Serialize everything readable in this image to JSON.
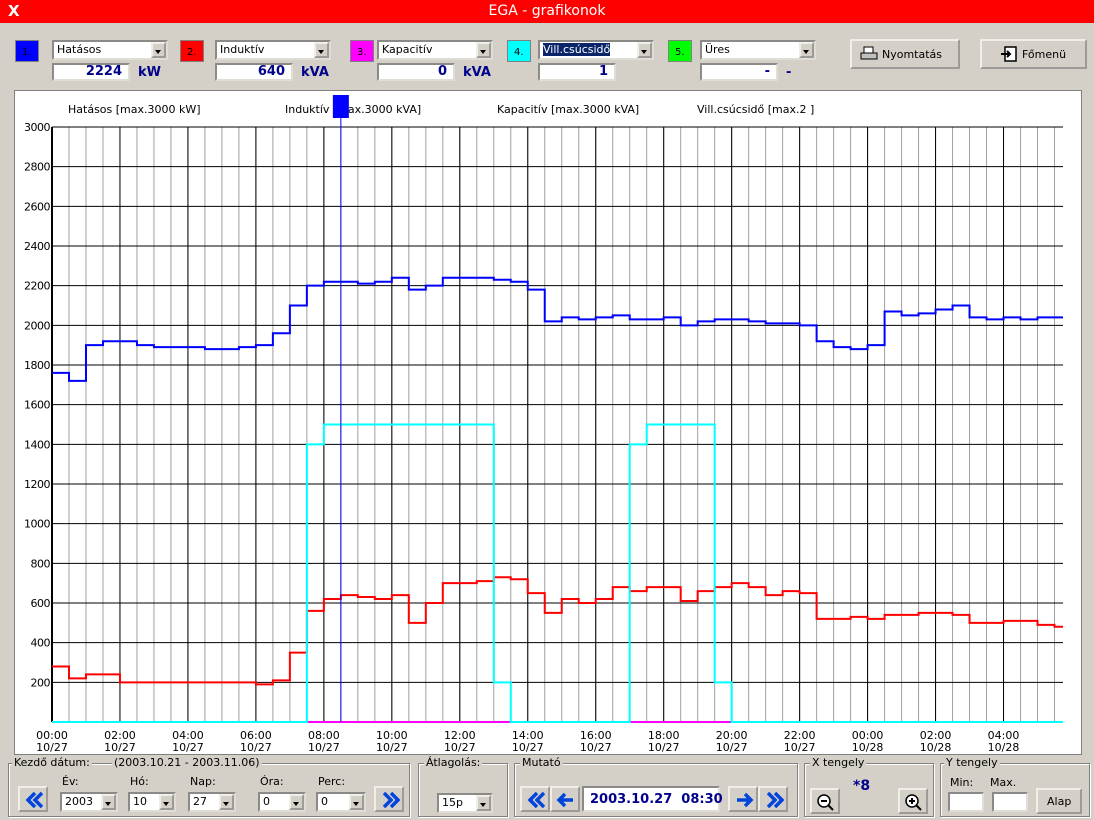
{
  "window": {
    "close": "X",
    "title": "EGA - grafikonok"
  },
  "channels": [
    {
      "number": "1.",
      "color": "#0000ff",
      "name": "Hatásos",
      "value": 2224,
      "unit": "kW"
    },
    {
      "number": "2.",
      "color": "#ff0000",
      "name": "Induktív",
      "value": 640,
      "unit": "kVA"
    },
    {
      "number": "3.",
      "color": "#ff00ff",
      "name": "Kapacitív",
      "value": 0,
      "unit": "kVA"
    },
    {
      "number": "4.",
      "color": "#00ffff",
      "name": "Vill.csúcsidő",
      "value": 1,
      "selected": true
    },
    {
      "number": "5.",
      "color": "#00ff00",
      "name": "Üres",
      "value": "-",
      "unit": "-"
    }
  ],
  "buttons": {
    "print": "Nyomtatás",
    "menu": "Főmenü"
  },
  "chart_data": {
    "type": "line",
    "step": true,
    "x": [
      0,
      0.5,
      1,
      1.5,
      2,
      2.5,
      3,
      3.5,
      4,
      4.5,
      5,
      5.5,
      6,
      6.5,
      7,
      7.5,
      8,
      8.5,
      9,
      9.5,
      10,
      10.5,
      11,
      11.5,
      12,
      12.5,
      13,
      13.5,
      14,
      14.5,
      15,
      15.5,
      16,
      16.5,
      17,
      17.5,
      18,
      18.5,
      19,
      19.5,
      20,
      20.5,
      21,
      21.5,
      22,
      22.5,
      23,
      23.5,
      24,
      24.5,
      25,
      25.5,
      26,
      26.5,
      27,
      27.5,
      28,
      28.5,
      29,
      29.5
    ],
    "series": [
      {
        "name": "Hatásos [max.3000 kW]",
        "color": "#0000ff",
        "values": [
          1760,
          1720,
          1900,
          1920,
          1920,
          1900,
          1890,
          1890,
          1890,
          1880,
          1880,
          1890,
          1900,
          1960,
          2100,
          2200,
          2220,
          2220,
          2210,
          2220,
          2240,
          2180,
          2200,
          2240,
          2240,
          2240,
          2230,
          2220,
          2180,
          2020,
          2040,
          2030,
          2040,
          2050,
          2030,
          2030,
          2040,
          2000,
          2020,
          2030,
          2030,
          2020,
          2010,
          2010,
          2000,
          1920,
          1890,
          1880,
          1900,
          2070,
          2050,
          2060,
          2080,
          2100,
          2040,
          2030,
          2040,
          2030,
          2040,
          2040
        ]
      },
      {
        "name": "Induktív [max.3000 kVA]",
        "color": "#ff0000",
        "values": [
          280,
          220,
          240,
          240,
          200,
          200,
          200,
          200,
          200,
          200,
          200,
          200,
          190,
          210,
          350,
          560,
          620,
          640,
          630,
          620,
          640,
          500,
          600,
          700,
          700,
          710,
          730,
          720,
          650,
          550,
          620,
          600,
          620,
          680,
          660,
          680,
          680,
          610,
          660,
          680,
          700,
          680,
          640,
          660,
          650,
          520,
          520,
          530,
          520,
          540,
          540,
          550,
          550,
          540,
          500,
          500,
          510,
          510,
          490,
          480
        ]
      },
      {
        "name": "Kapacitív [max.3000 kVA]",
        "color": "#ff00ff",
        "values": [
          0,
          0,
          0,
          0,
          0,
          0,
          0,
          0,
          0,
          0,
          0,
          0,
          0,
          0,
          0,
          0,
          0,
          0,
          0,
          0,
          0,
          0,
          0,
          0,
          0,
          0,
          0,
          0,
          0,
          0,
          0,
          0,
          0,
          0,
          0,
          0,
          0,
          0,
          0,
          0,
          0,
          0,
          0,
          0,
          0,
          0,
          0,
          0,
          0,
          0,
          0,
          0,
          0,
          0,
          0,
          0,
          0,
          0,
          0,
          0
        ]
      },
      {
        "name": "Vill.csúcsidő [max.2  ]",
        "color": "#00ffff",
        "values": [
          0,
          0,
          0,
          0,
          0,
          0,
          0,
          0,
          0,
          0,
          0,
          0,
          0,
          0,
          0,
          1400,
          1500,
          1500,
          1500,
          1500,
          1500,
          1500,
          1500,
          1500,
          1500,
          1500,
          200,
          0,
          0,
          0,
          0,
          0,
          0,
          0,
          1400,
          1500,
          1500,
          1500,
          1500,
          200,
          0,
          0,
          0,
          0,
          0,
          0,
          0,
          0,
          0,
          0,
          0,
          0,
          0,
          0,
          0,
          0,
          0,
          0,
          0,
          0
        ]
      }
    ],
    "xlim": [
      0,
      29.75
    ],
    "xticks": [
      {
        "value": 0,
        "label": "00:00",
        "date": "10/27"
      },
      {
        "value": 2,
        "label": "02:00",
        "date": "10/27"
      },
      {
        "value": 4,
        "label": "04:00",
        "date": "10/27"
      },
      {
        "value": 6,
        "label": "06:00",
        "date": "10/27"
      },
      {
        "value": 8,
        "label": "08:00",
        "date": "10/27"
      },
      {
        "value": 10,
        "label": "10:00",
        "date": "10/27"
      },
      {
        "value": 12,
        "label": "12:00",
        "date": "10/27"
      },
      {
        "value": 14,
        "label": "14:00",
        "date": "10/27"
      },
      {
        "value": 16,
        "label": "16:00",
        "date": "10/27"
      },
      {
        "value": 18,
        "label": "18:00",
        "date": "10/27"
      },
      {
        "value": 20,
        "label": "20:00",
        "date": "10/27"
      },
      {
        "value": 22,
        "label": "22:00",
        "date": "10/27"
      },
      {
        "value": 24,
        "label": "00:00",
        "date": "10/28"
      },
      {
        "value": 26,
        "label": "02:00",
        "date": "10/28"
      },
      {
        "value": 28,
        "label": "04:00",
        "date": "10/28"
      }
    ],
    "ylim": [
      0,
      3000
    ],
    "yticks": [
      200,
      400,
      600,
      800,
      1000,
      1200,
      1400,
      1600,
      1800,
      2000,
      2200,
      2400,
      2600,
      2800,
      3000
    ],
    "grid": true,
    "cursor": {
      "x": 8.5,
      "color": "#0000ff"
    }
  },
  "start": {
    "label": "Kezdő dátum:",
    "range": "(2003.10.21 - 2003.11.06)",
    "fields": [
      {
        "label": "Év:",
        "value": "2003"
      },
      {
        "label": "Hó:",
        "value": "10"
      },
      {
        "label": "Nap:",
        "value": "27"
      },
      {
        "label": "Óra:",
        "value": "0"
      },
      {
        "label": "Perc:",
        "value": "0"
      }
    ]
  },
  "averaging": {
    "label": "Átlagolás:",
    "value": "15p"
  },
  "pointer": {
    "label": "Mutató",
    "value": "2003.10.27  08:30"
  },
  "x_axis": {
    "label": "X tengely",
    "zoom": "*8"
  },
  "y_axis": {
    "label": "Y tengely",
    "min_label": "Min:",
    "max_label": "Max.",
    "button": "Alap"
  }
}
